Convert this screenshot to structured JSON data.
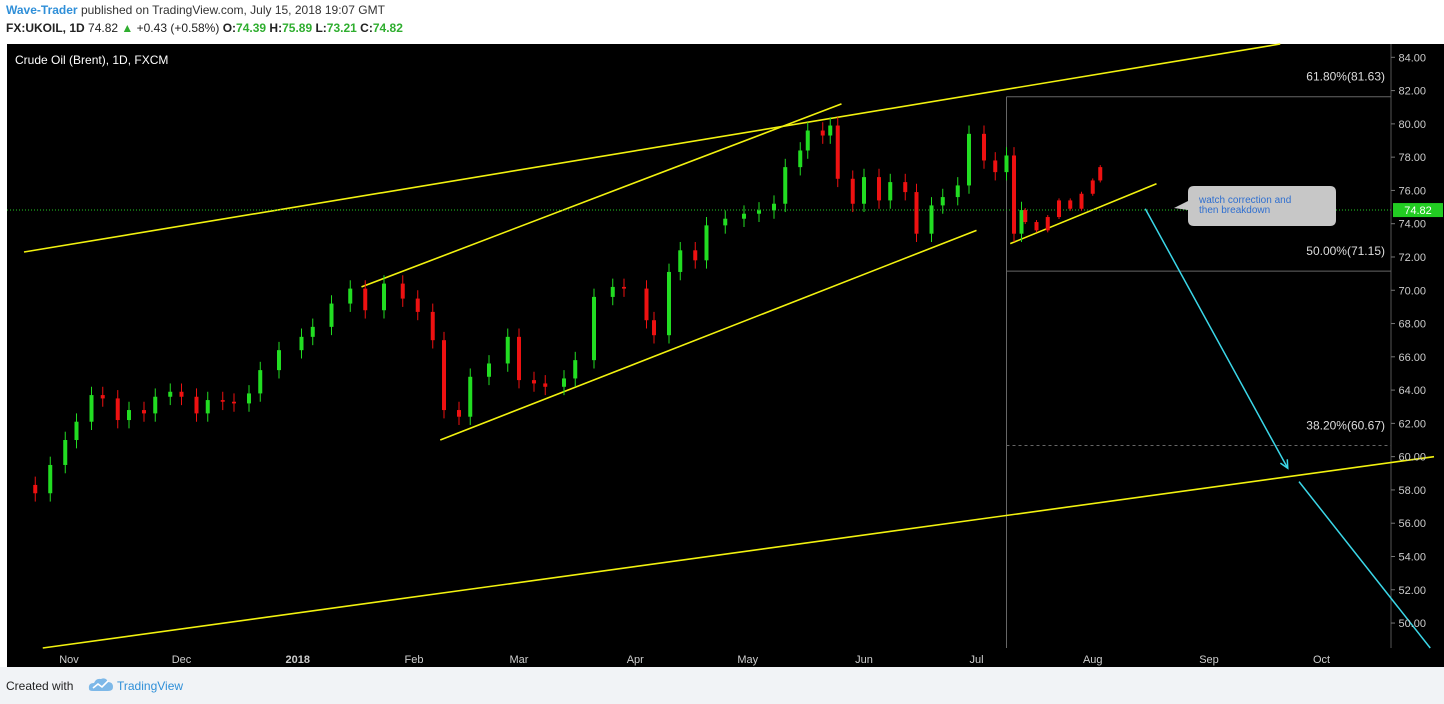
{
  "header": {
    "author": "Wave-Trader",
    "published": "published on TradingView.com, July 15, 2018 19:07 GMT",
    "symbol": "FX:UKOIL, 1D",
    "price": "74.82",
    "change": "+0.43 (+0.58%)",
    "o_label": "O:",
    "o_value": "74.39",
    "h_label": "H:",
    "h_value": "75.89",
    "l_label": "L:",
    "l_value": "73.21",
    "c_label": "C:",
    "c_value": "74.82"
  },
  "chart_data": {
    "type": "candlestick",
    "title": "Crude Oil (Brent), 1D, FXCM",
    "ylim": [
      48.5,
      84.8
    ],
    "y_ticks": [
      "84.00",
      "82.00",
      "80.00",
      "78.00",
      "76.00",
      "74.00",
      "72.00",
      "70.00",
      "68.00",
      "66.00",
      "64.00",
      "62.00",
      "60.00",
      "58.00",
      "56.00",
      "54.00",
      "52.00",
      "50.00"
    ],
    "x_ticks": [
      "Nov",
      "Dec",
      "2018",
      "Feb",
      "Mar",
      "Apr",
      "May",
      "Jun",
      "Jul",
      "Aug",
      "Sep",
      "Oct"
    ],
    "x_tick_dates": [
      "2017-11-01",
      "2017-12-01",
      "2018-01-01",
      "2018-02-01",
      "2018-03-01",
      "2018-04-01",
      "2018-05-01",
      "2018-06-01",
      "2018-07-01",
      "2018-08-01",
      "2018-09-01",
      "2018-10-01"
    ],
    "last_price": "74.82",
    "close_series": {
      "name": "",
      "points": [
        [
          "2017-10-23",
          57.8
        ],
        [
          "2017-10-27",
          59.5
        ],
        [
          "2017-10-31",
          61.0
        ],
        [
          "2017-11-03",
          62.1
        ],
        [
          "2017-11-07",
          63.7
        ],
        [
          "2017-11-10",
          63.5
        ],
        [
          "2017-11-14",
          62.2
        ],
        [
          "2017-11-17",
          62.8
        ],
        [
          "2017-11-21",
          62.6
        ],
        [
          "2017-11-24",
          63.6
        ],
        [
          "2017-11-28",
          63.9
        ],
        [
          "2017-12-01",
          63.6
        ],
        [
          "2017-12-05",
          62.6
        ],
        [
          "2017-12-08",
          63.4
        ],
        [
          "2017-12-12",
          63.3
        ],
        [
          "2017-12-15",
          63.2
        ],
        [
          "2017-12-19",
          63.8
        ],
        [
          "2017-12-22",
          65.2
        ],
        [
          "2017-12-27",
          66.4
        ],
        [
          "2018-01-02",
          67.2
        ],
        [
          "2018-01-05",
          67.8
        ],
        [
          "2018-01-10",
          69.2
        ],
        [
          "2018-01-15",
          70.1
        ],
        [
          "2018-01-19",
          68.8
        ],
        [
          "2018-01-24",
          70.4
        ],
        [
          "2018-01-29",
          69.5
        ],
        [
          "2018-02-02",
          68.7
        ],
        [
          "2018-02-06",
          67.0
        ],
        [
          "2018-02-09",
          62.8
        ],
        [
          "2018-02-13",
          62.4
        ],
        [
          "2018-02-16",
          64.8
        ],
        [
          "2018-02-21",
          65.6
        ],
        [
          "2018-02-26",
          67.2
        ],
        [
          "2018-03-01",
          64.6
        ],
        [
          "2018-03-05",
          64.4
        ],
        [
          "2018-03-08",
          64.2
        ],
        [
          "2018-03-13",
          64.7
        ],
        [
          "2018-03-16",
          65.8
        ],
        [
          "2018-03-21",
          69.6
        ],
        [
          "2018-03-26",
          70.2
        ],
        [
          "2018-03-29",
          70.1
        ],
        [
          "2018-04-04",
          68.2
        ],
        [
          "2018-04-06",
          67.3
        ],
        [
          "2018-04-10",
          71.1
        ],
        [
          "2018-04-13",
          72.4
        ],
        [
          "2018-04-17",
          71.8
        ],
        [
          "2018-04-20",
          73.9
        ],
        [
          "2018-04-25",
          74.3
        ],
        [
          "2018-04-30",
          74.6
        ],
        [
          "2018-05-04",
          74.8
        ],
        [
          "2018-05-08",
          75.2
        ],
        [
          "2018-05-11",
          77.4
        ],
        [
          "2018-05-15",
          78.4
        ],
        [
          "2018-05-17",
          79.6
        ],
        [
          "2018-05-21",
          79.3
        ],
        [
          "2018-05-23",
          79.9
        ],
        [
          "2018-05-25",
          76.7
        ],
        [
          "2018-05-29",
          75.2
        ],
        [
          "2018-06-01",
          76.8
        ],
        [
          "2018-06-05",
          75.4
        ],
        [
          "2018-06-08",
          76.5
        ],
        [
          "2018-06-12",
          75.9
        ],
        [
          "2018-06-15",
          73.4
        ],
        [
          "2018-06-19",
          75.1
        ],
        [
          "2018-06-22",
          75.6
        ],
        [
          "2018-06-26",
          76.3
        ],
        [
          "2018-06-29",
          79.4
        ],
        [
          "2018-07-03",
          77.8
        ],
        [
          "2018-07-06",
          77.1
        ],
        [
          "2018-07-09",
          78.1
        ],
        [
          "2018-07-11",
          73.4
        ],
        [
          "2018-07-13",
          74.82
        ]
      ]
    },
    "projection": {
      "path": [
        [
          "2018-07-14",
          74.1
        ],
        [
          "2018-07-17",
          73.6
        ],
        [
          "2018-07-20",
          74.4
        ],
        [
          "2018-07-23",
          75.4
        ],
        [
          "2018-07-26",
          74.9
        ],
        [
          "2018-07-29",
          75.8
        ],
        [
          "2018-08-01",
          76.6
        ],
        [
          "2018-08-03",
          77.4
        ]
      ]
    },
    "fibonacci": [
      {
        "label": "61.80%(81.63)",
        "value": 81.63
      },
      {
        "label": "50.00%(71.15)",
        "value": 71.15
      },
      {
        "label": "38.20%(60.67)",
        "value": 60.67
      }
    ],
    "trendlines": [
      {
        "from": [
          "2017-10-20",
          72.3
        ],
        "to": [
          "2018-09-20",
          84.8
        ]
      },
      {
        "from": [
          "2018-01-18",
          70.2
        ],
        "to": [
          "2018-05-26",
          81.2
        ]
      },
      {
        "from": [
          "2018-02-08",
          61.0
        ],
        "to": [
          "2018-07-01",
          73.6
        ]
      },
      {
        "from": [
          "2018-07-10",
          72.8
        ],
        "to": [
          "2018-08-18",
          76.4
        ]
      },
      {
        "from": [
          "2017-10-25",
          48.5
        ],
        "to": [
          "2018-10-31",
          60.0
        ]
      }
    ],
    "arrows": [
      {
        "from": [
          "2018-08-15",
          74.9
        ],
        "to": [
          "2018-09-22",
          59.3
        ]
      },
      {
        "from": [
          "2018-09-25",
          58.5
        ],
        "to": [
          "2018-10-30",
          48.5
        ]
      }
    ],
    "annotation": "watch correction and then breakdown",
    "colors": {
      "up": "#22dd22",
      "down": "#ee1111",
      "line": "#f2f20f",
      "arrow": "#3bd7e8",
      "price_line": "#22cc22",
      "fib": "#666666",
      "background": "#000000",
      "axis_text": "#cccccc"
    }
  },
  "footer": {
    "created_with": "Created with",
    "brand": "TradingView"
  }
}
